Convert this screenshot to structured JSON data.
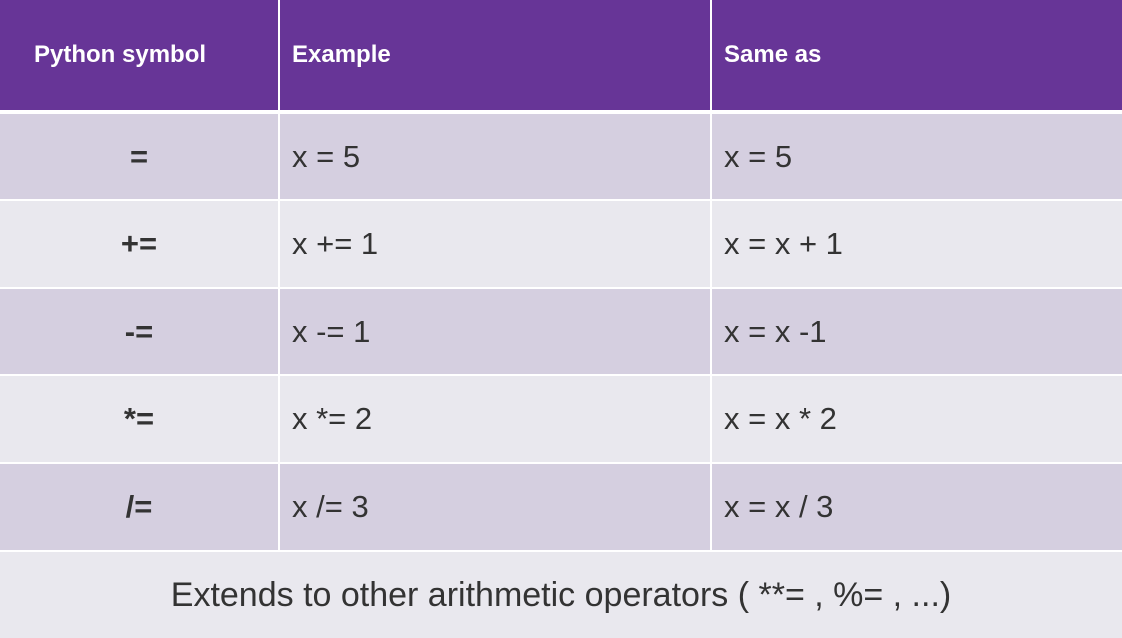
{
  "colors": {
    "header_bg": "#673597",
    "row_odd": "#d5cfe0",
    "row_even": "#e9e8ee",
    "text": "#333333"
  },
  "table": {
    "headers": [
      "Python symbol",
      "Example",
      "Same as"
    ],
    "rows": [
      [
        "=",
        "x = 5",
        "x = 5"
      ],
      [
        "+=",
        "x += 1",
        "x = x + 1"
      ],
      [
        "-=",
        "x -= 1",
        "x = x -1"
      ],
      [
        "*=",
        "x *= 2",
        "x = x * 2"
      ],
      [
        "/=",
        "x /= 3",
        "x = x / 3"
      ]
    ]
  },
  "footer": "Extends to other arithmetic operators ( **= , %= , ...)"
}
